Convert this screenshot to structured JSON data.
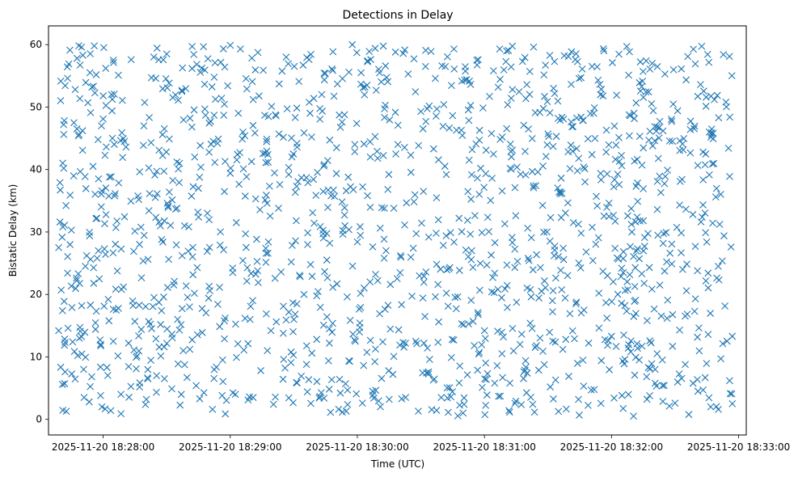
{
  "chart_data": {
    "type": "scatter",
    "title": "Detections in Delay",
    "xlabel": "Time (UTC)",
    "ylabel": "Bistatic Delay (km)",
    "marker": "x",
    "marker_color": "#1f77b4",
    "x_unit": "minutes since 2025-11-20 18:28:00",
    "xlim": [
      -0.43,
      5.06
    ],
    "ylim": [
      -2.5,
      63.0
    ],
    "x_ticks": [
      0,
      1,
      2,
      3,
      4,
      5
    ],
    "x_tick_labels": [
      "2025-11-20 18:28:00",
      "2025-11-20 18:29:00",
      "2025-11-20 18:30:00",
      "2025-11-20 18:31:00",
      "2025-11-20 18:32:00",
      "2025-11-20 18:33:00"
    ],
    "y_ticks": [
      0,
      10,
      20,
      30,
      40,
      50,
      60
    ],
    "y_tick_labels": [
      "0",
      "10",
      "20",
      "30",
      "40",
      "50",
      "60"
    ],
    "grid": false,
    "approx_point_count": 1500,
    "x_range": [
      -0.35,
      4.95
    ],
    "y_range": [
      0.5,
      60
    ],
    "series": [
      {
        "name": "detections",
        "points": [
          [
            -0.35,
            27.5
          ],
          [
            -0.35,
            14.2
          ],
          [
            -0.34,
            31.6
          ],
          [
            -0.34,
            37.9
          ],
          [
            -0.33,
            20.7
          ],
          [
            -0.32,
            17.4
          ],
          [
            -0.32,
            5.6
          ],
          [
            -0.31,
            45.6
          ],
          [
            -0.31,
            40.2
          ],
          [
            -0.3,
            7.6
          ],
          [
            -0.3,
            12.3
          ],
          [
            -0.29,
            1.3
          ],
          [
            -0.28,
            54.6
          ],
          [
            -0.28,
            23.4
          ],
          [
            -0.27,
            56.9
          ],
          [
            -0.26,
            35.9
          ],
          [
            -0.25,
            30.3
          ],
          [
            -0.24,
            12.4
          ],
          [
            -0.23,
            47.5
          ],
          [
            -0.22,
            52.8
          ],
          [
            -0.21,
            22.6
          ],
          [
            -0.2,
            10.2
          ],
          [
            -0.19,
            45.6
          ],
          [
            -0.18,
            14.1
          ],
          [
            -0.17,
            59.6
          ],
          [
            -0.16,
            58.3
          ],
          [
            -0.15,
            3.5
          ],
          [
            -0.14,
            24.5
          ],
          [
            -0.13,
            26.2
          ],
          [
            -0.12,
            50.7
          ],
          [
            -0.11,
            2.8
          ],
          [
            -0.1,
            18.3
          ],
          [
            -0.09,
            6.8
          ],
          [
            -0.08,
            40.5
          ],
          [
            -0.07,
            59.8
          ],
          [
            -0.06,
            14.4
          ],
          [
            -0.05,
            32.2
          ],
          [
            -0.04,
            44.8
          ],
          [
            -0.03,
            22.5
          ],
          [
            -0.02,
            12.0
          ],
          [
            -0.01,
            2.0
          ],
          [
            0.0,
            48.1
          ],
          [
            0.01,
            27.3
          ],
          [
            0.02,
            56.2
          ],
          [
            0.03,
            8.3
          ],
          [
            0.04,
            19.2
          ],
          [
            0.05,
            38.8
          ],
          [
            0.06,
            1.4
          ],
          [
            0.07,
            49.4
          ],
          [
            0.08,
            12.5
          ],
          [
            0.1,
            30.7
          ],
          [
            0.12,
            55.1
          ],
          [
            0.14,
            4.0
          ],
          [
            0.16,
            21.2
          ],
          [
            0.18,
            43.6
          ],
          [
            0.2,
            12.2
          ],
          [
            0.22,
            57.6
          ],
          [
            0.24,
            26.9
          ],
          [
            0.26,
            8.1
          ],
          [
            0.28,
            35.2
          ],
          [
            0.3,
            14.4
          ],
          [
            0.32,
            47.0
          ],
          [
            0.34,
            3.2
          ],
          [
            0.36,
            33.4
          ],
          [
            0.38,
            54.7
          ],
          [
            0.4,
            19.5
          ],
          [
            0.42,
            7.0
          ],
          [
            0.44,
            43.1
          ],
          [
            0.46,
            28.8
          ],
          [
            0.48,
            11.6
          ],
          [
            0.5,
            58.5
          ],
          [
            0.52,
            36.4
          ],
          [
            0.54,
            4.9
          ],
          [
            0.56,
            22.1
          ],
          [
            0.58,
            41.2
          ],
          [
            0.6,
            14.3
          ],
          [
            0.62,
            52.5
          ],
          [
            0.64,
            31.0
          ],
          [
            0.66,
            6.7
          ],
          [
            0.68,
            18.0
          ],
          [
            0.7,
            59.7
          ],
          [
            0.72,
            42.0
          ],
          [
            0.74,
            24.3
          ],
          [
            0.76,
            3.3
          ],
          [
            0.78,
            13.9
          ],
          [
            0.8,
            49.7
          ],
          [
            0.82,
            33.0
          ],
          [
            0.84,
            20.6
          ],
          [
            0.86,
            1.6
          ],
          [
            0.88,
            57.1
          ],
          [
            0.9,
            44.2
          ],
          [
            0.92,
            27.9
          ],
          [
            0.94,
            9.5
          ],
          [
            0.96,
            16.2
          ],
          [
            0.98,
            53.4
          ],
          [
            1.0,
            39.4
          ],
          [
            1.02,
            23.5
          ],
          [
            1.04,
            4.0
          ],
          [
            1.06,
            12.1
          ],
          [
            1.08,
            59.3
          ],
          [
            1.1,
            46.0
          ],
          [
            1.12,
            29.7
          ],
          [
            1.14,
            3.1
          ],
          [
            1.16,
            18.1
          ],
          [
            1.18,
            51.2
          ],
          [
            1.2,
            35.3
          ],
          [
            1.22,
            21.9
          ],
          [
            1.24,
            7.8
          ],
          [
            1.26,
            55.9
          ],
          [
            1.28,
            41.1
          ],
          [
            1.3,
            28.4
          ],
          [
            1.32,
            14.2
          ],
          [
            1.34,
            2.4
          ],
          [
            1.36,
            48.6
          ],
          [
            1.38,
            33.8
          ],
          [
            1.4,
            23.6
          ],
          [
            1.42,
            9.6
          ],
          [
            1.44,
            58.0
          ],
          [
            1.46,
            39.2
          ],
          [
            1.48,
            25.2
          ],
          [
            1.5,
            16.0
          ],
          [
            1.52,
            5.9
          ],
          [
            1.54,
            54.1
          ],
          [
            1.56,
            38.7
          ],
          [
            1.58,
            20.0
          ],
          [
            1.6,
            8.8
          ],
          [
            1.62,
            57.6
          ],
          [
            1.64,
            45.2
          ],
          [
            1.66,
            31.4
          ],
          [
            1.68,
            12.8
          ],
          [
            1.7,
            3.4
          ],
          [
            1.72,
            52.0
          ],
          [
            1.74,
            40.8
          ],
          [
            1.76,
            25.5
          ],
          [
            1.78,
            14.5
          ],
          [
            1.8,
            56.1
          ],
          [
            1.82,
            35.7
          ],
          [
            1.84,
            21.7
          ],
          [
            1.86,
            6.4
          ],
          [
            1.88,
            47.6
          ],
          [
            1.9,
            33.9
          ],
          [
            1.92,
            19.6
          ],
          [
            1.94,
            9.3
          ],
          [
            1.96,
            60.0
          ],
          [
            1.98,
            44.0
          ],
          [
            2.0,
            28.4
          ],
          [
            2.02,
            14.7
          ],
          [
            2.04,
            2.6
          ],
          [
            2.06,
            53.2
          ],
          [
            2.08,
            35.8
          ],
          [
            2.1,
            22.0
          ],
          [
            2.12,
            4.5
          ],
          [
            2.14,
            59.4
          ],
          [
            2.16,
            41.8
          ],
          [
            2.18,
            30.6
          ],
          [
            2.2,
            12.4
          ],
          [
            2.22,
            50.3
          ],
          [
            2.24,
            36.8
          ],
          [
            2.26,
            21.6
          ],
          [
            2.28,
            7.2
          ],
          [
            2.3,
            58.8
          ],
          [
            2.32,
            47.1
          ],
          [
            2.34,
            26.2
          ],
          [
            2.36,
            12.3
          ],
          [
            2.38,
            3.5
          ],
          [
            2.4,
            55.3
          ],
          [
            2.42,
            42.3
          ],
          [
            2.44,
            27.4
          ],
          [
            2.46,
            12.5
          ],
          [
            2.48,
            1.3
          ],
          [
            2.5,
            49.3
          ],
          [
            2.52,
            36.5
          ],
          [
            2.54,
            23.6
          ],
          [
            2.56,
            7.6
          ],
          [
            2.58,
            58.9
          ],
          [
            2.6,
            43.3
          ],
          [
            2.62,
            29.8
          ],
          [
            2.64,
            15.6
          ],
          [
            2.66,
            3.5
          ],
          [
            2.68,
            50.4
          ],
          [
            2.7,
            39.2
          ],
          [
            2.72,
            24.1
          ],
          [
            2.74,
            9.9
          ],
          [
            2.76,
            59.3
          ],
          [
            2.78,
            46.3
          ],
          [
            2.8,
            32.2
          ],
          [
            2.82,
            15.3
          ],
          [
            2.84,
            2.4
          ],
          [
            2.86,
            54.4
          ],
          [
            2.88,
            41.5
          ],
          [
            2.9,
            27.0
          ],
          [
            2.92,
            11.8
          ],
          [
            2.94,
            57.5
          ],
          [
            2.96,
            44.7
          ],
          [
            2.98,
            29.9
          ],
          [
            3.0,
            14.2
          ],
          [
            3.02,
            3.9
          ],
          [
            3.04,
            51.7
          ],
          [
            3.06,
            38.6
          ],
          [
            3.08,
            23.4
          ],
          [
            3.1,
            8.6
          ],
          [
            3.12,
            59.3
          ],
          [
            3.14,
            45.2
          ],
          [
            3.16,
            31.3
          ],
          [
            3.18,
            17.9
          ],
          [
            3.2,
            5.8
          ],
          [
            3.22,
            52.8
          ],
          [
            3.24,
            37.1
          ],
          [
            3.26,
            25.3
          ],
          [
            3.28,
            12.0
          ],
          [
            3.3,
            57.3
          ],
          [
            3.32,
            42.9
          ],
          [
            3.34,
            30.6
          ],
          [
            3.36,
            15.4
          ],
          [
            3.38,
            2.4
          ],
          [
            3.4,
            49.1
          ],
          [
            3.42,
            39.6
          ],
          [
            3.44,
            24.3
          ],
          [
            3.46,
            10.9
          ],
          [
            3.48,
            56.7
          ],
          [
            3.5,
            45.7
          ],
          [
            3.52,
            32.3
          ],
          [
            3.54,
            20.6
          ],
          [
            3.56,
            6.3
          ],
          [
            3.58,
            48.2
          ],
          [
            3.6,
            36.4
          ],
          [
            3.62,
            27.4
          ],
          [
            3.64,
            12.8
          ],
          [
            3.66,
            58.1
          ],
          [
            3.68,
            43.9
          ],
          [
            3.7,
            31.5
          ],
          [
            3.72,
            18.5
          ],
          [
            3.74,
            3.2
          ],
          [
            3.76,
            54.7
          ],
          [
            3.78,
            40.4
          ],
          [
            3.8,
            26.8
          ],
          [
            3.82,
            12.2
          ],
          [
            3.84,
            4.7
          ],
          [
            3.86,
            49.0
          ],
          [
            3.88,
            35.7
          ],
          [
            3.9,
            20.2
          ],
          [
            3.92,
            9.4
          ],
          [
            3.94,
            59.0
          ],
          [
            3.96,
            46.3
          ],
          [
            3.98,
            32.5
          ],
          [
            4.0,
            13.3
          ],
          [
            4.02,
            3.4
          ],
          [
            4.04,
            51.9
          ],
          [
            4.06,
            37.6
          ],
          [
            4.08,
            24.2
          ],
          [
            4.1,
            8.9
          ],
          [
            4.12,
            59.7
          ],
          [
            4.14,
            45.4
          ],
          [
            4.16,
            30.0
          ],
          [
            4.18,
            18.9
          ],
          [
            4.2,
            12.1
          ],
          [
            4.22,
            53.9
          ],
          [
            4.24,
            40.7
          ],
          [
            4.26,
            27.7
          ],
          [
            4.28,
            15.8
          ],
          [
            4.3,
            3.8
          ],
          [
            4.32,
            57.0
          ],
          [
            4.34,
            44.6
          ],
          [
            4.36,
            33.6
          ],
          [
            4.38,
            21.5
          ],
          [
            4.4,
            9.5
          ],
          [
            4.42,
            55.3
          ],
          [
            4.44,
            39.9
          ],
          [
            4.46,
            26.6
          ],
          [
            4.48,
            11.7
          ],
          [
            4.5,
            2.6
          ],
          [
            4.52,
            49.4
          ],
          [
            4.54,
            38.1
          ],
          [
            4.56,
            24.0
          ],
          [
            4.58,
            8.8
          ],
          [
            4.6,
            58.1
          ],
          [
            4.62,
            46.4
          ],
          [
            4.64,
            32.8
          ],
          [
            4.66,
            19.3
          ],
          [
            4.68,
            4.5
          ],
          [
            4.7,
            53.6
          ],
          [
            4.72,
            42.8
          ],
          [
            4.74,
            29.9
          ],
          [
            4.76,
            13.6
          ],
          [
            4.78,
            2.0
          ],
          [
            4.8,
            45.8
          ],
          [
            4.82,
            35.6
          ],
          [
            4.84,
            24.5
          ],
          [
            4.86,
            9.7
          ],
          [
            4.88,
            58.4
          ],
          [
            4.9,
            50.8
          ],
          [
            4.92,
            43.4
          ],
          [
            4.94,
            27.6
          ],
          [
            4.95,
            13.3
          ],
          [
            4.95,
            2.5
          ]
        ]
      }
    ]
  }
}
